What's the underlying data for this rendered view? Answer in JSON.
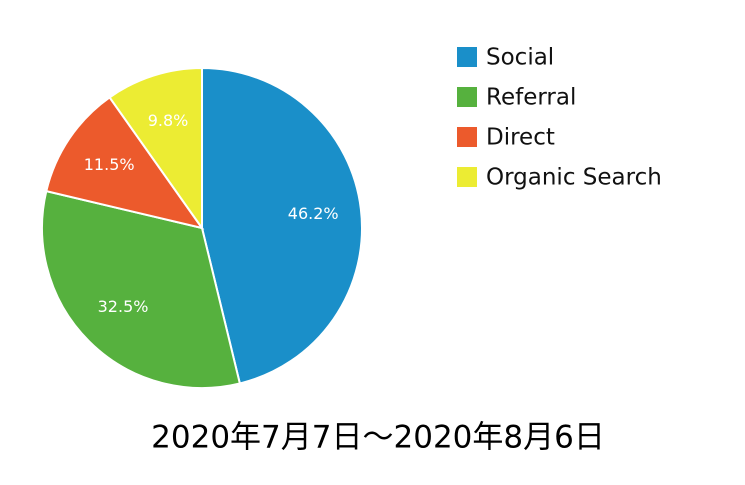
{
  "chart_data": {
    "type": "pie",
    "title": "2020年7月7日～2020年8月6日",
    "categories": [
      "Social",
      "Referral",
      "Direct",
      "Organic Search"
    ],
    "values": [
      46.2,
      32.5,
      11.5,
      9.8
    ],
    "value_labels": [
      "46.2%",
      "32.5%",
      "11.5%",
      "9.8%"
    ],
    "colors": [
      "#1a8fc9",
      "#56b13e",
      "#ec5a2c",
      "#ecec33"
    ],
    "legend": "right"
  }
}
